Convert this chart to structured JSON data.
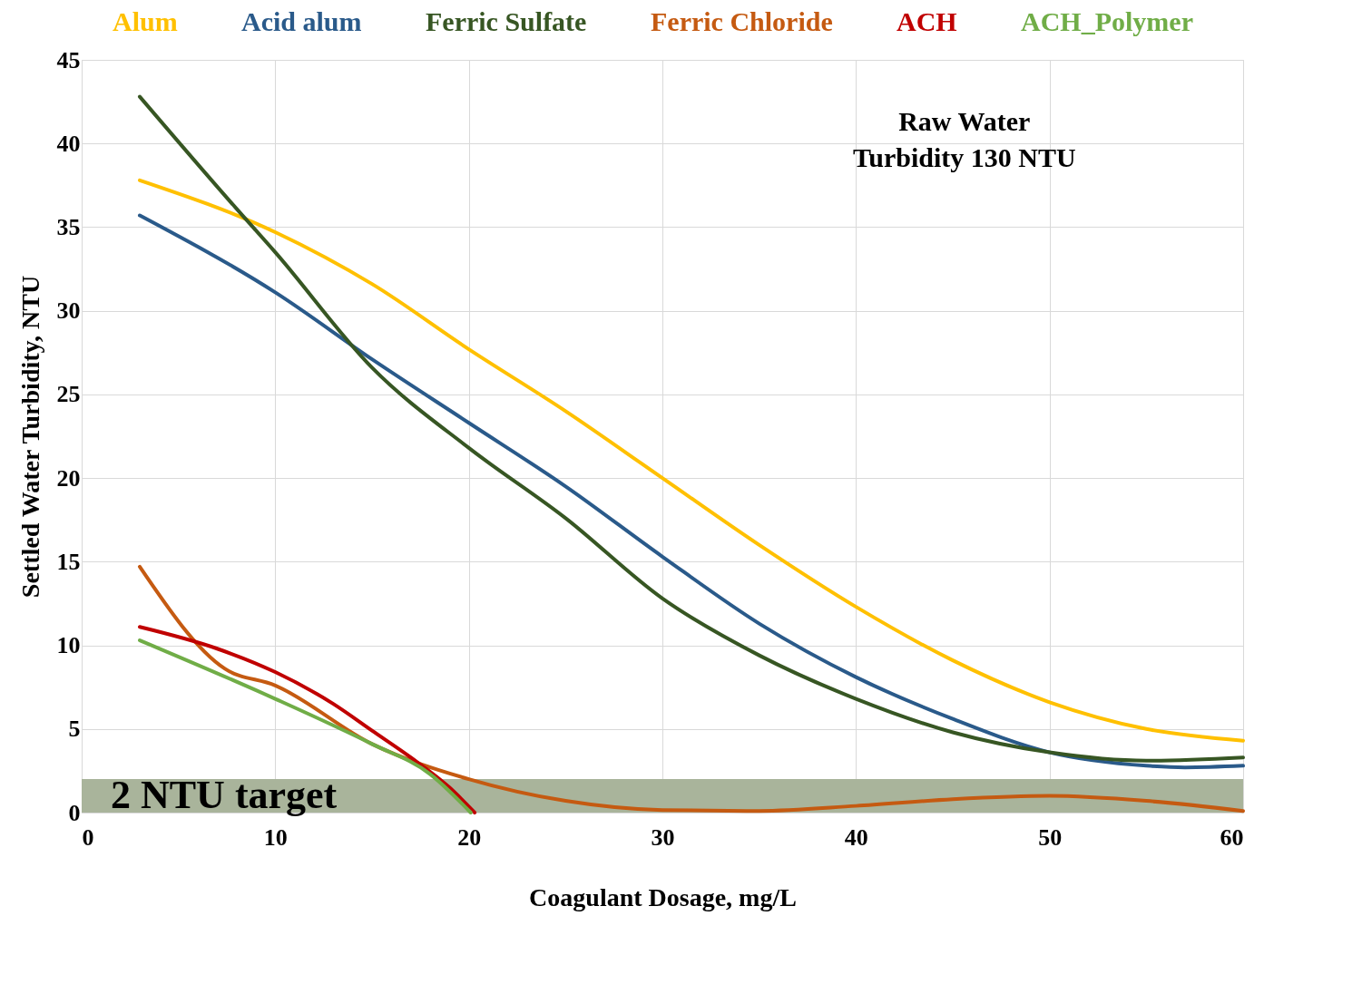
{
  "chart_data": {
    "type": "line",
    "xlabel": "Coagulant Dosage, mg/L",
    "ylabel": "Settled Water Turbidity, NTU",
    "xlim": [
      0,
      60
    ],
    "xticks": [
      0,
      10,
      20,
      30,
      40,
      50,
      60
    ],
    "ylim": [
      0,
      45
    ],
    "yticks": [
      0,
      5,
      10,
      15,
      20,
      25,
      30,
      35,
      40,
      45
    ],
    "grid": true,
    "legend": "top",
    "line_style": "solid",
    "marker": "none",
    "series": [
      {
        "name": "Alum",
        "color": "#ffc000",
        "x": [
          3,
          10,
          15,
          20,
          25,
          30,
          35,
          40,
          45,
          50,
          55,
          60
        ],
        "values": [
          37.8,
          34.7,
          31.6,
          27.7,
          24.0,
          20.0,
          16.0,
          12.3,
          9.1,
          6.6,
          5.0,
          4.3
        ]
      },
      {
        "name": "Acid alum",
        "color": "#2a5a8a",
        "x": [
          3,
          10,
          15,
          20,
          25,
          30,
          35,
          40,
          45,
          50,
          55,
          57,
          60
        ],
        "values": [
          35.7,
          31.1,
          27.1,
          23.3,
          19.5,
          15.3,
          11.3,
          8.1,
          5.6,
          3.6,
          2.8,
          2.7,
          2.8
        ]
      },
      {
        "name": "Ferric Sulfate",
        "color": "#375623",
        "x": [
          3,
          8,
          10,
          15,
          20,
          25,
          30,
          35,
          40,
          45,
          50,
          55,
          60
        ],
        "values": [
          42.8,
          36.1,
          33.5,
          26.6,
          21.8,
          17.6,
          12.8,
          9.4,
          6.8,
          4.8,
          3.6,
          3.1,
          3.3
        ]
      },
      {
        "name": "Ferric Chloride",
        "color": "#c55a11",
        "x": [
          3,
          7.4,
          10,
          15,
          20,
          25,
          30,
          35,
          40,
          45,
          50,
          55,
          60
        ],
        "values": [
          14.7,
          8.6,
          7.6,
          4.1,
          2.0,
          0.7,
          0.15,
          0.1,
          0.4,
          0.8,
          1.0,
          0.7,
          0.1
        ]
      },
      {
        "name": "ACH",
        "color": "#c00000",
        "x": [
          3,
          7,
          10,
          13,
          15,
          17,
          19,
          20.3
        ],
        "values": [
          11.1,
          9.8,
          8.4,
          6.5,
          4.9,
          3.3,
          1.5,
          0
        ]
      },
      {
        "name": "ACH_Polymer",
        "color": "#70ad47",
        "x": [
          3,
          10,
          15,
          18,
          20.1
        ],
        "values": [
          10.3,
          6.8,
          4.1,
          2.3,
          0
        ]
      }
    ],
    "bands": [
      {
        "axis": "y",
        "from": 0,
        "to": 2,
        "label": "2 NTU target",
        "color": "#a9b49b"
      }
    ],
    "annotations": [
      "Raw Water\nTurbidity 130 NTU"
    ]
  }
}
